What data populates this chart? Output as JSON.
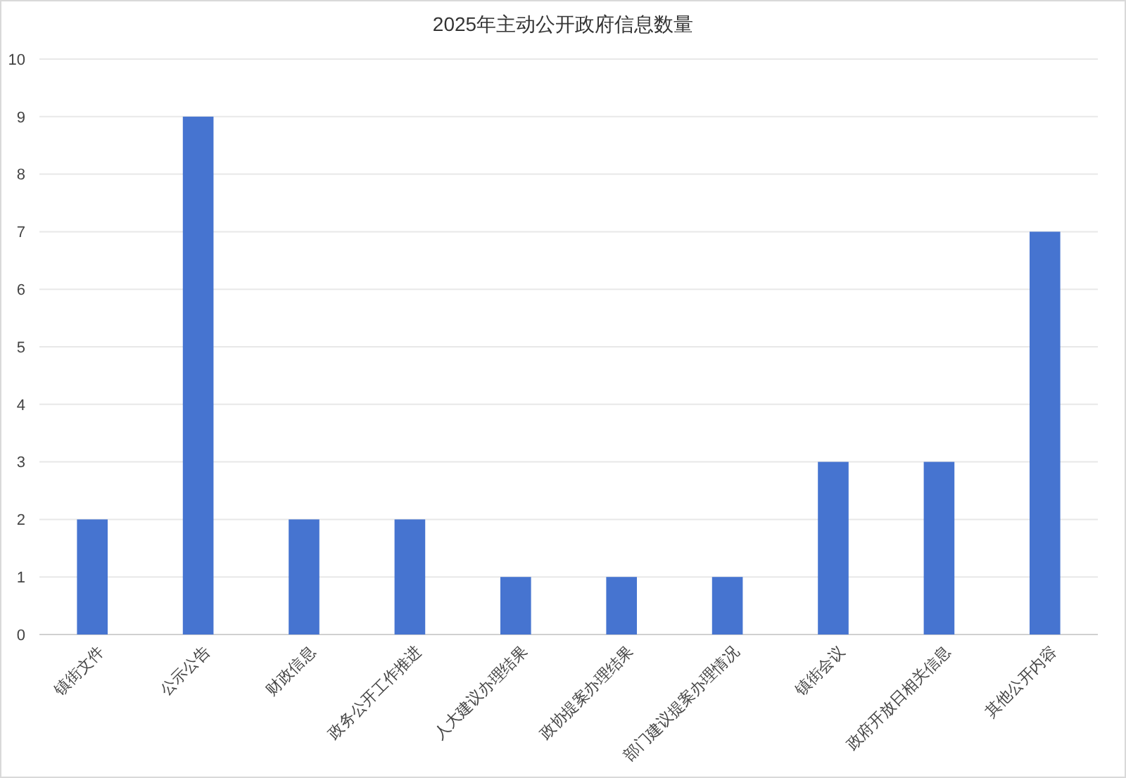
{
  "chart_data": {
    "type": "bar",
    "title": "2025年主动公开政府信息数量",
    "categories": [
      "镇街文件",
      "公示公告",
      "财政信息",
      "政务公开工作推进",
      "人大建议办理结果",
      "政协提案办理结果",
      "部门建议提案办理情况",
      "镇街会议",
      "政府开放日相关信息",
      "其他公开内容"
    ],
    "values": [
      2,
      9,
      2,
      2,
      1,
      1,
      1,
      3,
      3,
      7
    ],
    "color": "#4674d0",
    "ylim": [
      0,
      10
    ],
    "yticks": [
      0,
      1,
      2,
      3,
      4,
      5,
      6,
      7,
      8,
      9,
      10
    ],
    "grid": "y"
  }
}
